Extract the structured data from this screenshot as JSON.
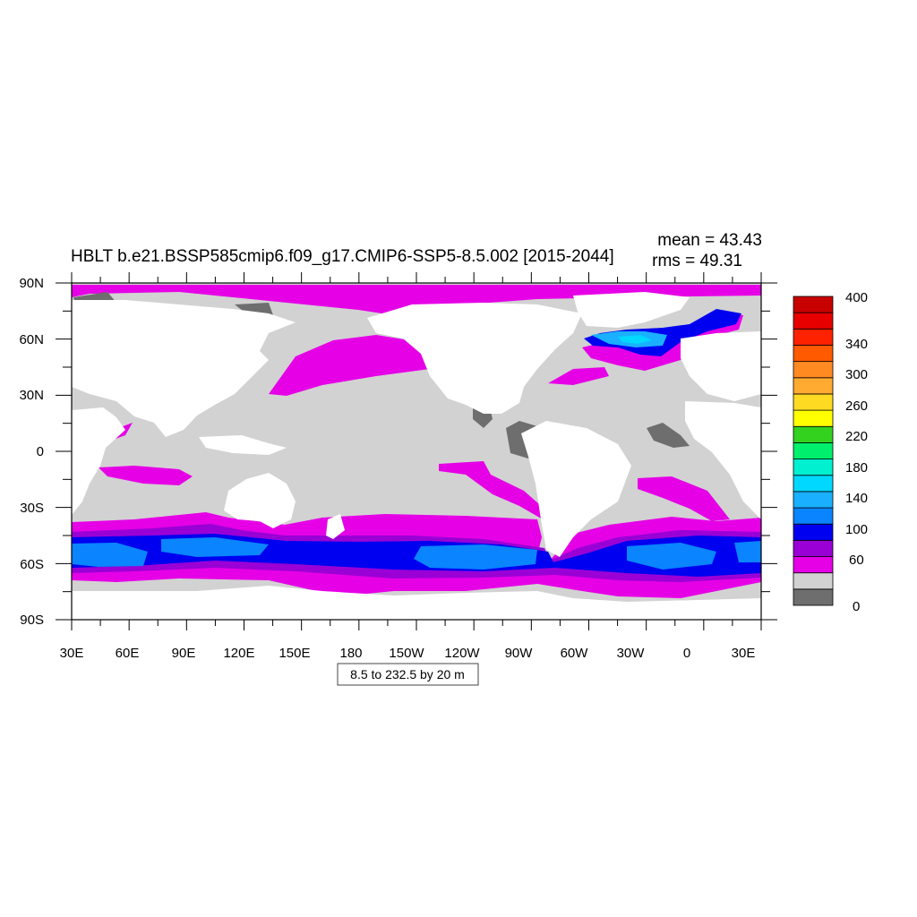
{
  "title": "HBLT b.e21.BSSP585cmip6.f09_g17.CMIP6-SSP5-8.5.002 [2015-2044]",
  "stats": {
    "mean": "mean = 43.43",
    "rms": "rms = 49.31"
  },
  "contour_info": "8.5 to 232.5 by 20 m",
  "lat_labels": [
    "90N",
    "60N",
    "30N",
    "0",
    "30S",
    "60S",
    "90S"
  ],
  "lon_labels": [
    "30E",
    "60E",
    "90E",
    "120E",
    "150E",
    "180",
    "150W",
    "120W",
    "90W",
    "60W",
    "30W",
    "0",
    "30E"
  ],
  "colorbar": {
    "colors": [
      "#6e6e6e",
      "#d2d2d2",
      "#e600e6",
      "#9a00d6",
      "#0000f0",
      "#0a84ff",
      "#1ab0ff",
      "#00d8ff",
      "#00f0d0",
      "#00ef6c",
      "#32d21e",
      "#ffff00",
      "#ffda22",
      "#ffaa30",
      "#ff8a22",
      "#ff5a00",
      "#ff2200",
      "#e60000",
      "#c80000"
    ],
    "labels": [
      {
        "text": "400",
        "boundary": 19
      },
      {
        "text": "340",
        "boundary": 16
      },
      {
        "text": "300",
        "boundary": 14
      },
      {
        "text": "260",
        "boundary": 12
      },
      {
        "text": "220",
        "boundary": 10
      },
      {
        "text": "180",
        "boundary": 8
      },
      {
        "text": "140",
        "boundary": 6
      },
      {
        "text": "100",
        "boundary": 4
      },
      {
        "text": "60",
        "boundary": 2
      },
      {
        "text": "0",
        "boundary": 0
      }
    ]
  },
  "colors": {
    "land": "#ffffff",
    "ocean_low": "#d2d2d2",
    "ocean_zero": "#6e6e6e",
    "band_magenta": "#e600e6",
    "band_purple": "#9a00d6",
    "band_blue": "#0000f0",
    "band_lightblue": "#0a84ff",
    "band_cyan": "#1ab0ff"
  }
}
